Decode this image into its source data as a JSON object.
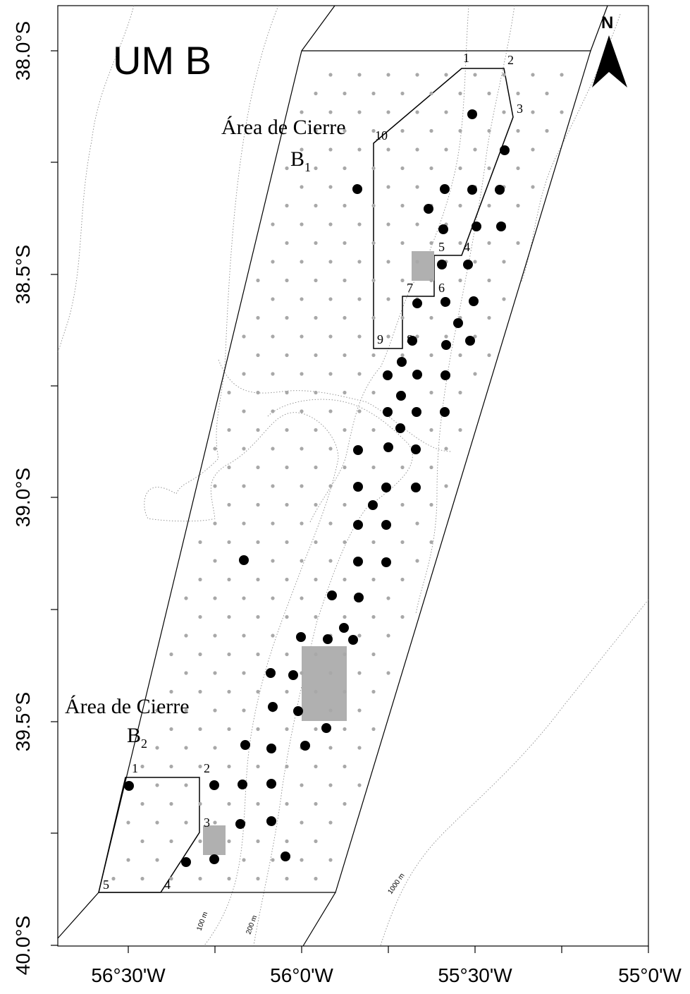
{
  "map": {
    "title": "UM B",
    "north_label": "N",
    "lat_labels": [
      "38.0°S",
      "38.5°S",
      "39.0°S",
      "39.5°S",
      "40.0°S"
    ],
    "lon_labels": [
      "56°30'W",
      "56°0'W",
      "55°30'W",
      "55°0'W"
    ],
    "closure_area_b1": {
      "label": "Área de Cierre",
      "name": "B",
      "subscript": "1",
      "vertex_labels": [
        "1",
        "2",
        "3",
        "4",
        "5",
        "6",
        "7",
        "8",
        "9",
        "10"
      ]
    },
    "closure_area_b2": {
      "label": "Área de Cierre",
      "name": "B",
      "subscript": "2",
      "vertex_labels": [
        "1",
        "2",
        "3",
        "4",
        "5"
      ]
    },
    "isobath_labels": [
      "100 m",
      "200 m",
      "1000 m"
    ],
    "colors": {
      "positive_station": "#000000",
      "negative_station": "#a8a8a8",
      "shaded_area": "#b0b0b0",
      "outline": "#000000",
      "isobath": "#8a8a8a"
    }
  }
}
